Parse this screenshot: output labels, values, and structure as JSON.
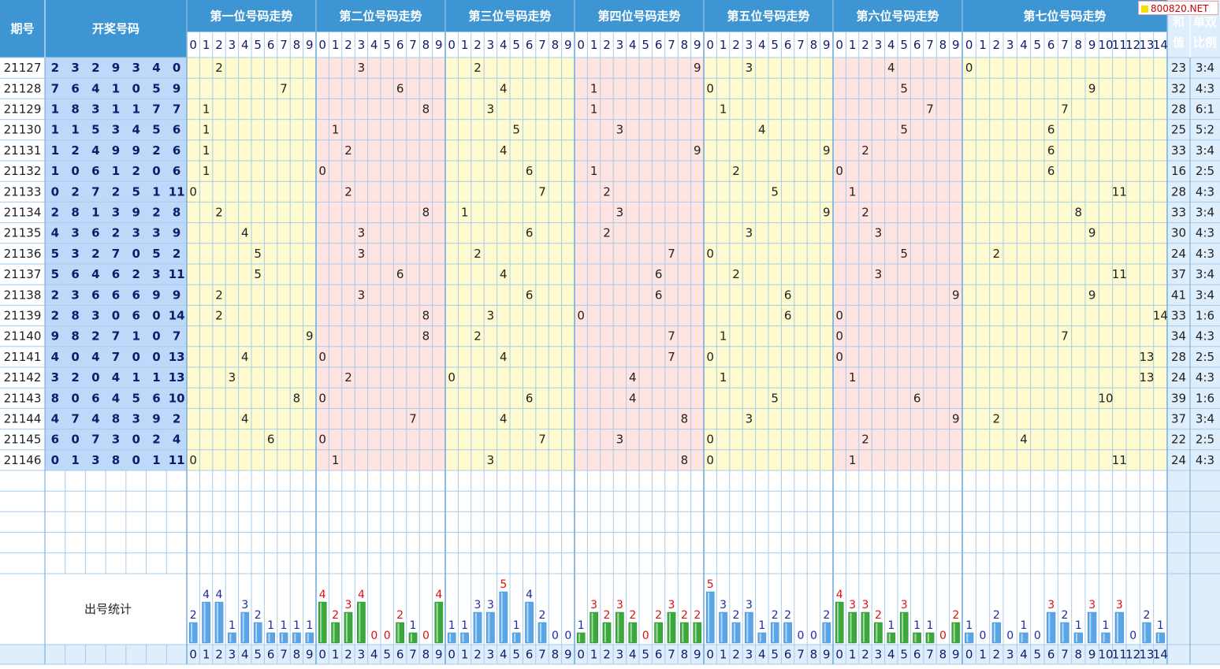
{
  "headers": {
    "issue": "期号",
    "draw": "开奖号码",
    "positions": [
      "第一位号码走势",
      "第二位号码走势",
      "第三位号码走势",
      "第四位号码走势",
      "第五位号码走势",
      "第六位号码走势",
      "第七位号码走势"
    ],
    "sum_top": "和",
    "sum_bottom": "值",
    "ratio_top": "单双",
    "ratio_bottom": "比例",
    "stats": "出号统计"
  },
  "watermark": "800820.NET",
  "colors": {
    "header_bg": "#3d95d3",
    "grid_line": "#a9cbe8",
    "odd_bg": "#fffbd0",
    "even_bg": "#ffe4e1",
    "draw_bg": "#bdd8f8",
    "right_bg": "#dfeefc",
    "bar_blue": "#5aa5e6",
    "bar_green": "#3aa83a",
    "count_blue": "#1a2ca8",
    "count_red": "#dd1111"
  },
  "chart_data": {
    "type": "table",
    "issues": [
      "21127",
      "21128",
      "21129",
      "21130",
      "21131",
      "21132",
      "21133",
      "21134",
      "21135",
      "21136",
      "21137",
      "21138",
      "21139",
      "21140",
      "21141",
      "21142",
      "21143",
      "21144",
      "21145",
      "21146"
    ],
    "draws": [
      [
        2,
        3,
        2,
        9,
        3,
        4,
        0
      ],
      [
        7,
        6,
        4,
        1,
        0,
        5,
        9
      ],
      [
        1,
        8,
        3,
        1,
        1,
        7,
        7
      ],
      [
        1,
        1,
        5,
        3,
        4,
        5,
        6
      ],
      [
        1,
        2,
        4,
        9,
        9,
        2,
        6
      ],
      [
        1,
        0,
        6,
        1,
        2,
        0,
        6
      ],
      [
        0,
        2,
        7,
        2,
        5,
        1,
        11
      ],
      [
        2,
        8,
        1,
        3,
        9,
        2,
        8
      ],
      [
        4,
        3,
        6,
        2,
        3,
        3,
        9
      ],
      [
        5,
        3,
        2,
        7,
        0,
        5,
        2
      ],
      [
        5,
        6,
        4,
        6,
        2,
        3,
        11
      ],
      [
        2,
        3,
        6,
        6,
        6,
        9,
        9
      ],
      [
        2,
        8,
        3,
        0,
        6,
        0,
        14
      ],
      [
        9,
        8,
        2,
        7,
        1,
        0,
        7
      ],
      [
        4,
        0,
        4,
        7,
        0,
        0,
        13
      ],
      [
        3,
        2,
        0,
        4,
        1,
        1,
        13
      ],
      [
        8,
        0,
        6,
        4,
        5,
        6,
        10
      ],
      [
        4,
        7,
        4,
        8,
        3,
        9,
        2
      ],
      [
        6,
        0,
        7,
        3,
        0,
        2,
        4
      ],
      [
        0,
        1,
        3,
        8,
        0,
        1,
        11
      ]
    ],
    "sums": [
      23,
      32,
      28,
      25,
      33,
      16,
      28,
      33,
      30,
      24,
      37,
      41,
      33,
      34,
      28,
      24,
      39,
      37,
      22,
      24
    ],
    "ratios": [
      "3:4",
      "4:3",
      "6:1",
      "5:2",
      "3:4",
      "2:5",
      "4:3",
      "3:4",
      "4:3",
      "4:3",
      "3:4",
      "3:4",
      "1:6",
      "4:3",
      "2:5",
      "4:3",
      "1:6",
      "3:4",
      "2:5",
      "4:3"
    ],
    "digit_ranges": [
      10,
      10,
      10,
      10,
      10,
      10,
      15
    ],
    "counts": [
      [
        2,
        4,
        4,
        1,
        3,
        2,
        1,
        1,
        1,
        1
      ],
      [
        4,
        2,
        3,
        4,
        0,
        0,
        2,
        1,
        0,
        4
      ],
      [
        1,
        1,
        3,
        3,
        5,
        1,
        4,
        2,
        0,
        0
      ],
      [
        1,
        3,
        2,
        3,
        2,
        0,
        2,
        3,
        2,
        2
      ],
      [
        5,
        3,
        2,
        3,
        1,
        2,
        2,
        0,
        0,
        2
      ],
      [
        4,
        3,
        3,
        2,
        1,
        3,
        1,
        1,
        0,
        2
      ],
      [
        1,
        0,
        2,
        0,
        1,
        0,
        3,
        2,
        1,
        3,
        1,
        3,
        0,
        2,
        1
      ]
    ]
  }
}
